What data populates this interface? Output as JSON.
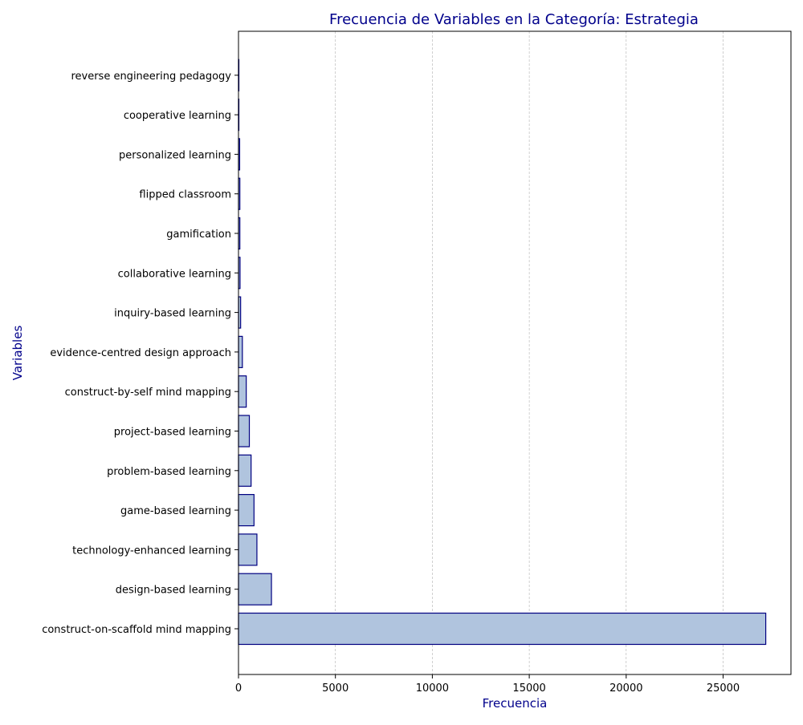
{
  "chart_data": {
    "type": "bar",
    "orientation": "horizontal",
    "title": "Frecuencia de Variables en la Categoría: Estrategia",
    "xlabel": "Frecuencia",
    "ylabel": "Variables",
    "xlim": [
      0,
      28500
    ],
    "xticks": [
      0,
      5000,
      10000,
      15000,
      20000,
      25000
    ],
    "grid": "x-axis dashed",
    "categories": [
      "construct-on-scaffold mind mapping",
      "design-based learning",
      "technology-enhanced learning",
      "game-based learning",
      "problem-based learning",
      "project-based learning",
      "construct-by-self mind mapping",
      "evidence-centred design approach",
      "inquiry-based learning",
      "collaborative learning",
      "gamification",
      "flipped classroom",
      "personalized learning",
      "cooperative learning",
      "reverse engineering pedagogy"
    ],
    "values": [
      27200,
      1700,
      950,
      800,
      650,
      560,
      400,
      200,
      110,
      80,
      70,
      70,
      60,
      20,
      10
    ],
    "colors": {
      "bar_fill": "#b0c4de",
      "bar_edge": "#000080",
      "label": "#00008b",
      "grid": "#b0b0b0"
    }
  }
}
